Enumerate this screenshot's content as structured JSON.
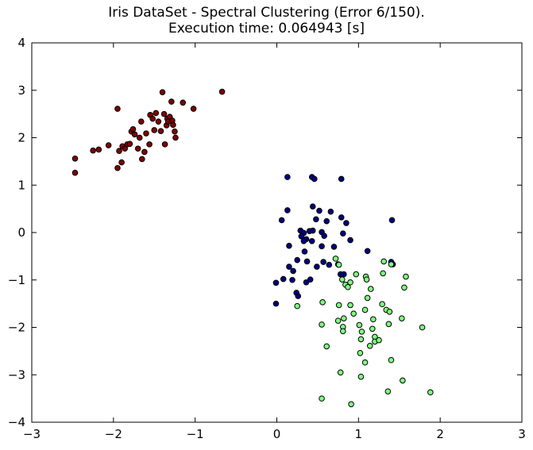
{
  "chart_data": {
    "type": "scatter",
    "title": "Iris DataSet - Spectral Clustering (Error 6/150).",
    "subtitle": "Execution time: 0.064943 [s]",
    "xlabel": "",
    "ylabel": "",
    "xlim": [
      -3,
      3
    ],
    "ylim": [
      -4,
      4
    ],
    "x_ticks": [
      -3,
      -2,
      -1,
      0,
      1,
      2,
      3
    ],
    "y_ticks": [
      -4,
      -3,
      -2,
      -1,
      0,
      1,
      2,
      3,
      4
    ],
    "grid": false,
    "legend": "none",
    "series": [
      {
        "color": "#800000",
        "points": [
          [
            -2.47,
            1.56
          ],
          [
            -2.47,
            1.26
          ],
          [
            -2.25,
            1.73
          ],
          [
            -2.18,
            1.75
          ],
          [
            -2.06,
            1.84
          ],
          [
            -1.95,
            2.61
          ],
          [
            -1.95,
            1.36
          ],
          [
            -1.93,
            1.72
          ],
          [
            -1.9,
            1.48
          ],
          [
            -1.89,
            1.82
          ],
          [
            -1.86,
            1.77
          ],
          [
            -1.83,
            1.86
          ],
          [
            -1.8,
            1.87
          ],
          [
            -1.78,
            2.13
          ],
          [
            -1.76,
            2.18
          ],
          [
            -1.74,
            2.07
          ],
          [
            -1.7,
            1.77
          ],
          [
            -1.68,
            2.0
          ],
          [
            -1.66,
            2.34
          ],
          [
            -1.65,
            1.55
          ],
          [
            -1.62,
            1.7
          ],
          [
            -1.6,
            2.09
          ],
          [
            -1.56,
            1.86
          ],
          [
            -1.55,
            2.48
          ],
          [
            -1.52,
            2.4
          ],
          [
            -1.5,
            2.16
          ],
          [
            -1.48,
            2.52
          ],
          [
            -1.45,
            2.34
          ],
          [
            -1.42,
            2.14
          ],
          [
            -1.4,
            2.96
          ],
          [
            -1.38,
            2.5
          ],
          [
            -1.37,
            1.86
          ],
          [
            -1.35,
            2.26
          ],
          [
            -1.34,
            2.4
          ],
          [
            -1.33,
            2.34
          ],
          [
            -1.31,
            2.44
          ],
          [
            -1.29,
            2.76
          ],
          [
            -1.28,
            2.36
          ],
          [
            -1.27,
            2.27
          ],
          [
            -1.25,
            2.13
          ],
          [
            -1.24,
            2.0
          ],
          [
            -1.15,
            2.74
          ],
          [
            -1.02,
            2.61
          ],
          [
            -0.67,
            2.97
          ]
        ]
      },
      {
        "color": "#000080",
        "points": [
          [
            0.13,
            1.17
          ],
          [
            0.43,
            1.17
          ],
          [
            0.46,
            1.13
          ],
          [
            0.79,
            1.13
          ],
          [
            0.44,
            0.55
          ],
          [
            0.52,
            0.46
          ],
          [
            0.66,
            0.44
          ],
          [
            0.13,
            0.47
          ],
          [
            0.06,
            0.26
          ],
          [
            0.48,
            0.28
          ],
          [
            0.61,
            0.24
          ],
          [
            0.79,
            0.32
          ],
          [
            0.85,
            0.2
          ],
          [
            1.41,
            0.26
          ],
          [
            0.29,
            0.04
          ],
          [
            0.33,
            -0.01
          ],
          [
            0.4,
            0.03
          ],
          [
            0.44,
            0.04
          ],
          [
            0.55,
            0.01
          ],
          [
            0.58,
            -0.07
          ],
          [
            0.3,
            -0.08
          ],
          [
            0.36,
            -0.14
          ],
          [
            0.33,
            -0.18
          ],
          [
            0.43,
            -0.18
          ],
          [
            0.81,
            -0.02
          ],
          [
            0.9,
            -0.16
          ],
          [
            0.15,
            -0.28
          ],
          [
            0.34,
            -0.4
          ],
          [
            0.55,
            -0.29
          ],
          [
            0.7,
            -0.3
          ],
          [
            1.11,
            -0.39
          ],
          [
            0.25,
            -0.58
          ],
          [
            0.37,
            -0.61
          ],
          [
            0.57,
            -0.62
          ],
          [
            0.64,
            -0.68
          ],
          [
            0.49,
            -0.72
          ],
          [
            0.75,
            -0.67
          ],
          [
            0.15,
            -0.72
          ],
          [
            1.4,
            -0.62
          ],
          [
            1.42,
            -0.67
          ],
          [
            0.2,
            -0.81
          ],
          [
            0.08,
            -0.98
          ],
          [
            0.19,
            -1.0
          ],
          [
            0.36,
            -1.05
          ],
          [
            0.41,
            -0.99
          ],
          [
            -0.01,
            -1.06
          ],
          [
            0.24,
            -1.27
          ],
          [
            0.26,
            -1.34
          ],
          [
            0.78,
            -0.88
          ],
          [
            0.82,
            -0.88
          ],
          [
            -0.01,
            -1.5
          ]
        ]
      },
      {
        "color": "#80ff80",
        "points": [
          [
            0.72,
            -0.55
          ],
          [
            0.76,
            -0.68
          ],
          [
            0.8,
            -0.99
          ],
          [
            0.84,
            -1.1
          ],
          [
            0.87,
            -1.15
          ],
          [
            0.9,
            -1.05
          ],
          [
            0.97,
            -0.88
          ],
          [
            1.09,
            -0.93
          ],
          [
            1.1,
            -0.99
          ],
          [
            1.15,
            -1.19
          ],
          [
            1.31,
            -0.61
          ],
          [
            1.4,
            -0.67
          ],
          [
            1.3,
            -0.86
          ],
          [
            1.58,
            -0.93
          ],
          [
            1.56,
            -1.16
          ],
          [
            0.25,
            -1.55
          ],
          [
            0.56,
            -1.47
          ],
          [
            0.76,
            -1.53
          ],
          [
            0.9,
            -1.53
          ],
          [
            1.11,
            -1.38
          ],
          [
            1.08,
            -1.63
          ],
          [
            1.29,
            -1.51
          ],
          [
            1.34,
            -1.63
          ],
          [
            1.38,
            -1.67
          ],
          [
            0.94,
            -1.71
          ],
          [
            0.82,
            -1.81
          ],
          [
            0.75,
            -1.86
          ],
          [
            0.55,
            -1.94
          ],
          [
            1.18,
            -1.83
          ],
          [
            1.53,
            -1.81
          ],
          [
            1.78,
            -2.0
          ],
          [
            0.81,
            -1.99
          ],
          [
            0.81,
            -2.08
          ],
          [
            1.01,
            -1.95
          ],
          [
            1.04,
            -2.09
          ],
          [
            1.17,
            -2.03
          ],
          [
            1.37,
            -1.93
          ],
          [
            1.03,
            -2.25
          ],
          [
            1.2,
            -2.2
          ],
          [
            1.2,
            -2.3
          ],
          [
            1.25,
            -2.27
          ],
          [
            0.61,
            -2.4
          ],
          [
            1.14,
            -2.39
          ],
          [
            1.02,
            -2.54
          ],
          [
            1.08,
            -2.74
          ],
          [
            1.4,
            -2.69
          ],
          [
            0.78,
            -2.95
          ],
          [
            1.03,
            -3.04
          ],
          [
            1.54,
            -3.12
          ],
          [
            1.36,
            -3.35
          ],
          [
            1.88,
            -3.37
          ],
          [
            0.55,
            -3.5
          ],
          [
            0.91,
            -3.62
          ]
        ]
      }
    ]
  }
}
